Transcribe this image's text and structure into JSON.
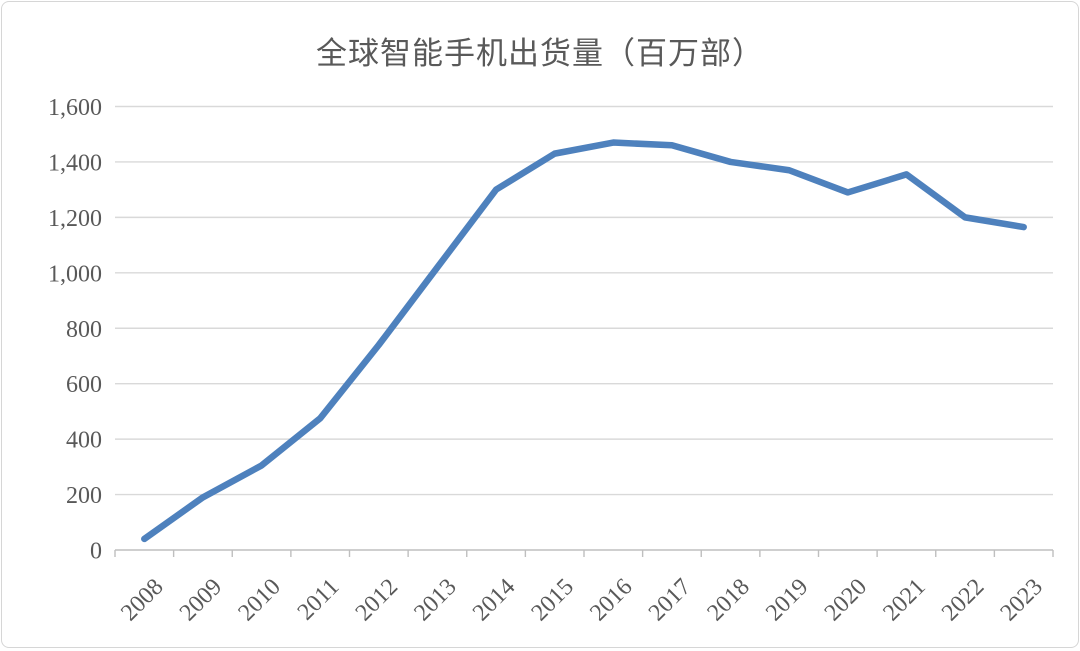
{
  "chart_data": {
    "type": "line",
    "title": "全球智能手机出货量（百万部）",
    "xlabel": "",
    "ylabel": "",
    "categories": [
      "2008",
      "2009",
      "2010",
      "2011",
      "2012",
      "2013",
      "2014",
      "2015",
      "2016",
      "2017",
      "2018",
      "2019",
      "2020",
      "2021",
      "2022",
      "2023"
    ],
    "series": [
      {
        "name": "全球智能手机出货量",
        "values": [
          40,
          190,
          305,
          475,
          740,
          1020,
          1300,
          1430,
          1470,
          1460,
          1400,
          1370,
          1290,
          1355,
          1200,
          1165
        ]
      }
    ],
    "ylim": [
      0,
      1600
    ],
    "ytick_step": 200,
    "ytick_labels": [
      "0",
      "200",
      "400",
      "600",
      "800",
      "1,000",
      "1,200",
      "1,400",
      "1,600"
    ],
    "grid": "horizontal",
    "legend_position": "none",
    "colors": {
      "line": "#4E81BD",
      "gridline": "#D9D9D9",
      "axis": "#BFBFBF",
      "tick_label": "#595959",
      "title": "#595959",
      "border": "#D6D6D6",
      "background": "#FFFFFF"
    }
  }
}
